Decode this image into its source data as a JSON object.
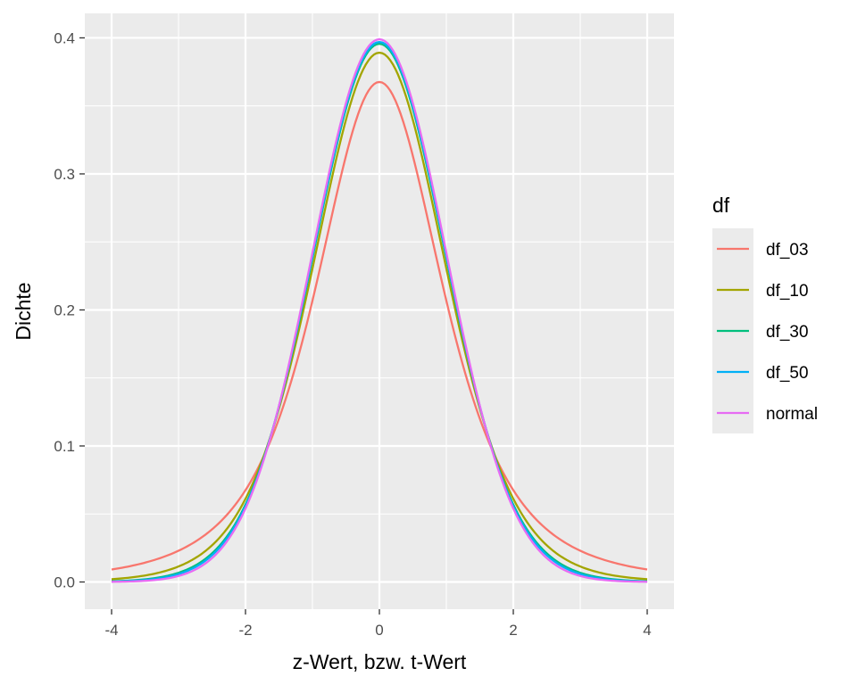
{
  "chart_data": {
    "type": "line",
    "title": "",
    "xlabel": "z-Wert, bzw. t-Wert",
    "ylabel": "Dichte",
    "xlim": [
      -4.4,
      4.4
    ],
    "ylim": [
      -0.02,
      0.418
    ],
    "x_ticks": [
      -4,
      -2,
      0,
      2,
      4
    ],
    "x_tick_labels": [
      "-4",
      "-2",
      "0",
      "2",
      "4"
    ],
    "y_ticks": [
      0.0,
      0.1,
      0.2,
      0.3,
      0.4
    ],
    "y_tick_labels": [
      "0.0",
      "0.1",
      "0.2",
      "0.3",
      "0.4"
    ],
    "grid": true,
    "legend": {
      "title": "df",
      "position": "right"
    },
    "x": [
      -4.0,
      -3.5,
      -3.0,
      -2.5,
      -2.0,
      -1.5,
      -1.0,
      -0.5,
      0.0,
      0.5,
      1.0,
      1.5,
      2.0,
      2.5,
      3.0,
      3.5,
      4.0
    ],
    "series": [
      {
        "name": "df_03",
        "color": "#F8766D",
        "df": 3,
        "values": [
          0.0092,
          0.0146,
          0.023,
          0.0364,
          0.0675,
          0.1166,
          0.2067,
          0.3125,
          0.3676,
          0.3125,
          0.2067,
          0.1166,
          0.0675,
          0.0364,
          0.023,
          0.0146,
          0.0092
        ]
      },
      {
        "name": "df_10",
        "color": "#A3A500",
        "df": 10,
        "values": [
          0.002,
          0.0049,
          0.0114,
          0.0269,
          0.0611,
          0.1274,
          0.2304,
          0.3402,
          0.3891,
          0.3402,
          0.2304,
          0.1274,
          0.0611,
          0.0269,
          0.0114,
          0.0049,
          0.002
        ]
      },
      {
        "name": "df_30",
        "color": "#00BF7D",
        "df": 30,
        "values": [
          0.0006,
          0.0022,
          0.0062,
          0.0189,
          0.0558,
          0.1302,
          0.2378,
          0.3475,
          0.3956,
          0.3475,
          0.2378,
          0.1302,
          0.0558,
          0.0189,
          0.0062,
          0.0022,
          0.0006
        ]
      },
      {
        "name": "df_50",
        "color": "#00B0F6",
        "df": 50,
        "values": [
          0.0004,
          0.0015,
          0.0057,
          0.0181,
          0.0554,
          0.1288,
          0.2384,
          0.3489,
          0.3969,
          0.3489,
          0.2384,
          0.1288,
          0.0554,
          0.0181,
          0.0057,
          0.0015,
          0.0004
        ]
      },
      {
        "name": "normal",
        "color": "#E76BF3",
        "df": 0,
        "values": [
          0.0001,
          0.0009,
          0.0044,
          0.0175,
          0.054,
          0.1295,
          0.242,
          0.3521,
          0.3989,
          0.3521,
          0.242,
          0.1295,
          0.054,
          0.0175,
          0.0044,
          0.0009,
          0.0001
        ]
      }
    ]
  },
  "colors": {
    "panel_background": "#EBEBEB",
    "grid": "#FFFFFF",
    "tick": "#333333",
    "tick_label": "#4D4D4D"
  }
}
